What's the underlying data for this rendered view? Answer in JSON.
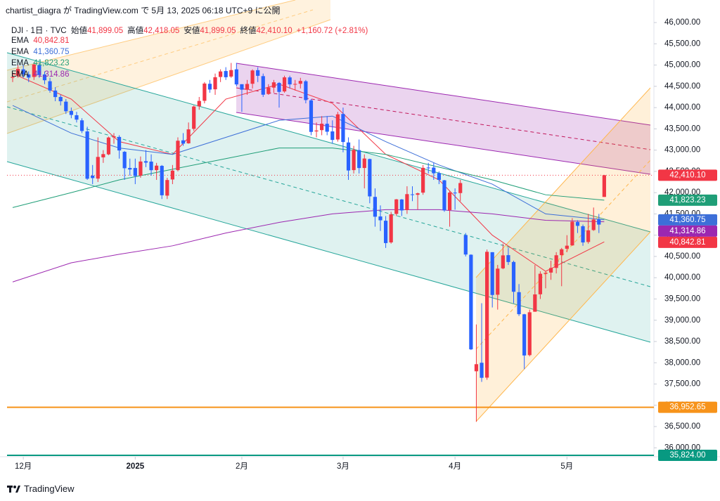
{
  "publish_note": "chartist_diagra が TradingView.com で 5月 13, 2025 06:18 UTC+9 に公開",
  "logo": "TradingView",
  "chart_data": {
    "type": "candlestick",
    "header": {
      "symbol": "DJI · 1日 · TVC",
      "fields": [
        {
          "name": "始値",
          "label": "41,899.05"
        },
        {
          "name": "高値",
          "label": "42,418.05"
        },
        {
          "name": "安値",
          "label": "41,899.05"
        },
        {
          "name": "終値",
          "label": "42,410.10"
        }
      ],
      "change": "+1,160.72 (+2.81%)"
    },
    "up_color": "#f23645",
    "down_color": "#2962ff",
    "x": [
      "2024-11-27",
      "2024-11-29",
      "2024-12-02",
      "2024-12-03",
      "2024-12-04",
      "2024-12-05",
      "2024-12-06",
      "2024-12-09",
      "2024-12-10",
      "2024-12-11",
      "2024-12-12",
      "2024-12-13",
      "2024-12-16",
      "2024-12-17",
      "2024-12-18",
      "2024-12-19",
      "2024-12-20",
      "2024-12-23",
      "2024-12-24",
      "2024-12-26",
      "2024-12-27",
      "2024-12-30",
      "2024-12-31",
      "2025-01-02",
      "2025-01-03",
      "2025-01-06",
      "2025-01-07",
      "2025-01-08",
      "2025-01-10",
      "2025-01-13",
      "2025-01-14",
      "2025-01-15",
      "2025-01-16",
      "2025-01-17",
      "2025-01-21",
      "2025-01-22",
      "2025-01-23",
      "2025-01-24",
      "2025-01-27",
      "2025-01-28",
      "2025-01-29",
      "2025-01-30",
      "2025-01-31",
      "2025-02-03",
      "2025-02-04",
      "2025-02-05",
      "2025-02-06",
      "2025-02-07",
      "2025-02-10",
      "2025-02-11",
      "2025-02-12",
      "2025-02-13",
      "2025-02-14",
      "2025-02-18",
      "2025-02-19",
      "2025-02-20",
      "2025-02-21",
      "2025-02-24",
      "2025-02-25",
      "2025-02-26",
      "2025-02-27",
      "2025-02-28",
      "2025-03-03",
      "2025-03-04",
      "2025-03-05",
      "2025-03-06",
      "2025-03-07",
      "2025-03-10",
      "2025-03-11",
      "2025-03-12",
      "2025-03-13",
      "2025-03-14",
      "2025-03-17",
      "2025-03-18",
      "2025-03-19",
      "2025-03-20",
      "2025-03-21",
      "2025-03-24",
      "2025-03-25",
      "2025-03-26",
      "2025-03-27",
      "2025-03-28",
      "2025-03-31",
      "2025-04-01",
      "2025-04-02",
      "2025-04-03",
      "2025-04-04",
      "2025-04-07",
      "2025-04-08",
      "2025-04-09",
      "2025-04-10",
      "2025-04-11",
      "2025-04-14",
      "2025-04-15",
      "2025-04-16",
      "2025-04-17",
      "2025-04-21",
      "2025-04-22",
      "2025-04-23",
      "2025-04-24",
      "2025-04-25",
      "2025-04-28",
      "2025-04-29",
      "2025-04-30",
      "2025-05-01",
      "2025-05-02",
      "2025-05-05",
      "2025-05-06",
      "2025-05-07",
      "2025-05-08",
      "2025-05-09",
      "2025-05-12"
    ],
    "open": [
      44700,
      44750,
      44900,
      44780,
      44720,
      45000,
      44780,
      44620,
      44400,
      44250,
      44140,
      43920,
      43820,
      43700,
      43440,
      42400,
      42330,
      42830,
      42900,
      43300,
      43310,
      42960,
      42580,
      42580,
      42400,
      42740,
      42730,
      42530,
      42630,
      41930,
      42310,
      42530,
      43230,
      43160,
      43500,
      44030,
      44160,
      44560,
      44430,
      44720,
      44860,
      44730,
      44900,
      44550,
      44420,
      44560,
      44880,
      44740,
      44320,
      44470,
      44580,
      44380,
      44710,
      44550,
      44560,
      44620,
      44170,
      43440,
      43470,
      43620,
      43440,
      43250,
      43850,
      43180,
      42530,
      43000,
      42580,
      42790,
      41900,
      41440,
      41340,
      40830,
      41500,
      41840,
      41590,
      41960,
      41950,
      42000,
      42590,
      42590,
      42460,
      42290,
      41590,
      42000,
      41990,
      41000,
      40540,
      37800,
      38000,
      37650,
      40600,
      39600,
      40220,
      40530,
      40370,
      39660,
      39140,
      38180,
      39200,
      39610,
      40090,
      40120,
      40230,
      40530,
      40680,
      40760,
      41310,
      41210,
      40840,
      41120,
      41370,
      41899.05
    ],
    "high": [
      44830,
      45000,
      45000,
      44850,
      45070,
      45050,
      44850,
      44700,
      44480,
      44300,
      44200,
      44000,
      43900,
      43750,
      43550,
      42650,
      43300,
      43000,
      43320,
      43400,
      43350,
      42980,
      42800,
      42800,
      42850,
      43000,
      42900,
      42700,
      42650,
      42350,
      42650,
      43300,
      43400,
      43650,
      44050,
      44250,
      44600,
      44650,
      44800,
      44900,
      44950,
      45050,
      45050,
      44550,
      44650,
      44900,
      44950,
      44800,
      44550,
      44650,
      44600,
      44750,
      44750,
      44650,
      44700,
      44650,
      44200,
      43650,
      43800,
      43800,
      43700,
      43900,
      44000,
      43300,
      43100,
      43250,
      42900,
      42800,
      42100,
      41700,
      41450,
      41550,
      41850,
      41850,
      42150,
      42150,
      42000,
      42650,
      42700,
      42700,
      42500,
      42300,
      42050,
      42100,
      42300,
      41050,
      40550,
      38900,
      39400,
      40663,
      40600,
      40300,
      40800,
      40700,
      40400,
      39850,
      39150,
      39250,
      40300,
      40150,
      40150,
      40400,
      40600,
      40700,
      41000,
      41400,
      41350,
      41250,
      41500,
      41650,
      41500,
      42418.05
    ],
    "low": [
      44600,
      44700,
      44700,
      44600,
      44650,
      44700,
      44550,
      44350,
      44150,
      44050,
      43850,
      43750,
      43650,
      43400,
      42300,
      42200,
      42250,
      42700,
      42880,
      43150,
      42800,
      42300,
      42400,
      42200,
      42350,
      42600,
      42400,
      42300,
      41850,
      41850,
      42200,
      42500,
      43100,
      43150,
      43450,
      43950,
      44100,
      44350,
      44300,
      44600,
      44650,
      44700,
      44500,
      43900,
      44300,
      44450,
      44600,
      44250,
      44300,
      44350,
      44000,
      44350,
      44450,
      44400,
      44450,
      44100,
      43350,
      43300,
      43350,
      43350,
      43150,
      43200,
      42950,
      42300,
      42450,
      42450,
      42100,
      41750,
      41200,
      41100,
      40700,
      40800,
      41450,
      41450,
      41500,
      41800,
      41600,
      41950,
      42450,
      42300,
      42200,
      41550,
      41200,
      41600,
      41800,
      40500,
      38300,
      36612,
      37550,
      37600,
      39300,
      39250,
      40200,
      40300,
      39400,
      39100,
      37850,
      38150,
      39200,
      39500,
      39750,
      39950,
      40100,
      39800,
      40600,
      40750,
      41050,
      40750,
      40800,
      41100,
      41050,
      41899.05
    ],
    "close": [
      44722,
      44911,
      44782,
      44705,
      45014,
      44765,
      44643,
      44401,
      44248,
      44149,
      43914,
      43828,
      43717,
      43450,
      42327,
      42342,
      42840,
      42906,
      43297,
      43326,
      42992,
      42574,
      42544,
      42392,
      42732,
      42706,
      42528,
      42635,
      41938,
      42297,
      42518,
      43221,
      43153,
      43488,
      44025,
      44157,
      44565,
      44424,
      44714,
      44850,
      44714,
      44882,
      44545,
      44422,
      44556,
      44873,
      44747,
      44303,
      44470,
      44594,
      44369,
      44711,
      44546,
      44556,
      44628,
      44177,
      43428,
      43461,
      43621,
      43433,
      43240,
      43841,
      43191,
      42521,
      43006,
      42579,
      42802,
      41912,
      41434,
      41350,
      40814,
      41489,
      41842,
      41582,
      41965,
      41953,
      41985,
      42583,
      42588,
      42455,
      42300,
      41584,
      42002,
      41990,
      42226,
      40545,
      38315,
      37966,
      37646,
      40609,
      39594,
      40213,
      40525,
      40369,
      39669,
      39142,
      38171,
      39187,
      39607,
      40093,
      40114,
      40228,
      40528,
      40669,
      40753,
      41317,
      41219,
      40829,
      41114,
      41368,
      41249,
      42410.1
    ],
    "ema": [
      {
        "name": "EMA",
        "color": "#f23645",
        "value_label": "40,842.81",
        "x": [
          "2024-11-27",
          "2024-12-13",
          "2024-12-27",
          "2025-01-14",
          "2025-01-29",
          "2025-02-12",
          "2025-02-27",
          "2025-03-13",
          "2025-03-27",
          "2025-04-10",
          "2025-04-25",
          "2025-05-12"
        ],
        "values": [
          44800,
          44200,
          43200,
          42900,
          44200,
          44550,
          44100,
          42900,
          42300,
          41000,
          40150,
          40842.81
        ]
      },
      {
        "name": "EMA",
        "color": "#3d6fd8",
        "value_label": "41,360.75",
        "x": [
          "2024-11-27",
          "2024-12-13",
          "2024-12-27",
          "2025-01-14",
          "2025-01-29",
          "2025-02-12",
          "2025-02-27",
          "2025-03-13",
          "2025-03-27",
          "2025-04-10",
          "2025-04-25",
          "2025-05-12"
        ],
        "values": [
          44050,
          43400,
          43050,
          42900,
          43300,
          43700,
          43800,
          43200,
          42650,
          42200,
          41500,
          41360.75
        ]
      },
      {
        "name": "EMA",
        "color": "#1f9e77",
        "value_label": "41,823.23",
        "x": [
          "2024-11-27",
          "2024-12-13",
          "2024-12-27",
          "2025-01-14",
          "2025-01-29",
          "2025-02-12",
          "2025-02-27",
          "2025-03-13",
          "2025-03-27",
          "2025-04-10",
          "2025-04-25",
          "2025-05-12"
        ],
        "values": [
          41650,
          42000,
          42300,
          42550,
          42800,
          43050,
          43050,
          42900,
          42600,
          42300,
          41950,
          41823.23
        ]
      },
      {
        "name": "EMA",
        "color": "#9c27b0",
        "value_label": "41,314.86",
        "x": [
          "2024-11-27",
          "2024-12-13",
          "2024-12-27",
          "2025-01-14",
          "2025-01-29",
          "2025-02-12",
          "2025-02-27",
          "2025-03-13",
          "2025-03-27",
          "2025-04-10",
          "2025-04-25",
          "2025-05-12"
        ],
        "values": [
          39900,
          40350,
          40550,
          40750,
          41050,
          41300,
          41500,
          41600,
          41600,
          41500,
          41350,
          41314.86
        ]
      }
    ],
    "levels": [
      {
        "value": 36952.65,
        "label": "36,952.65",
        "color": "#f7931a"
      },
      {
        "value": 35824.0,
        "label": "35,824.00",
        "color": "#089981"
      }
    ],
    "ylim": [
      35790,
      46530
    ],
    "yticks": [
      {
        "value": 46000,
        "label": "46,000.00"
      },
      {
        "value": 45500,
        "label": "45,500.00"
      },
      {
        "value": 45000,
        "label": "45,000.00"
      },
      {
        "value": 44500,
        "label": "44,500.00"
      },
      {
        "value": 44000,
        "label": "44,000.00"
      },
      {
        "value": 43500,
        "label": "43,500.00"
      },
      {
        "value": 43000,
        "label": "43,000.00"
      },
      {
        "value": 42500,
        "label": "42,500.00"
      },
      {
        "value": 42000,
        "label": "42,000.00"
      },
      {
        "value": 41500,
        "label": "41,500.00"
      },
      {
        "value": 41000,
        "label": "41,000.00"
      },
      {
        "value": 40500,
        "label": "40,500.00"
      },
      {
        "value": 40000,
        "label": "40,000.00"
      },
      {
        "value": 39500,
        "label": "39,500.00"
      },
      {
        "value": 39000,
        "label": "39,000.00"
      },
      {
        "value": 38500,
        "label": "38,500.00"
      },
      {
        "value": 38000,
        "label": "38,000.00"
      },
      {
        "value": 37500,
        "label": "37,500.00"
      },
      {
        "value": 37000,
        "label": "37,000.00"
      },
      {
        "value": 36500,
        "label": "36,500.00"
      },
      {
        "value": 36000,
        "label": "36,000.00"
      }
    ],
    "xticks": [
      {
        "value": "2024-12-02",
        "label": "12月"
      },
      {
        "value": "2025-01-02",
        "label": "2025"
      },
      {
        "value": "2025-02-03",
        "label": "2月"
      },
      {
        "value": "2025-03-03",
        "label": "3月"
      },
      {
        "value": "2025-04-01",
        "label": "4月"
      },
      {
        "value": "2025-05-01",
        "label": "5月"
      }
    ]
  }
}
